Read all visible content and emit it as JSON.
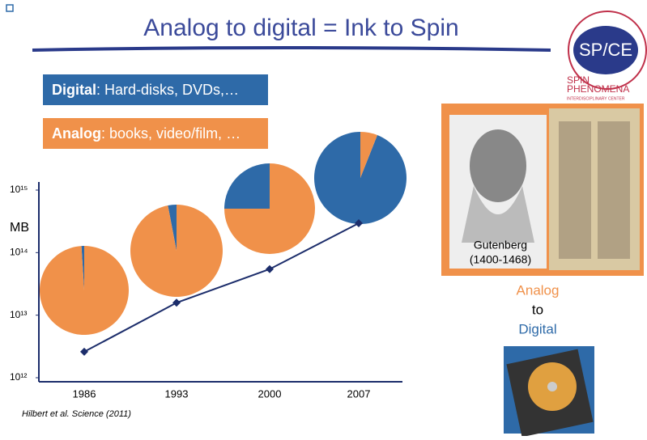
{
  "title": "Analog to digital = Ink to Spin",
  "logo": {
    "mark": "SP/CE",
    "name_line1": "SPIN",
    "name_line2": "PHENOMENA",
    "subtitle": "INTERDISCIPLINARY CENTER"
  },
  "figure": {
    "caption": [
      "Gutenberg",
      "(1400-1468)"
    ]
  },
  "transition": [
    "Analog",
    "to",
    "Digital"
  ],
  "citation": "Hilbert et al. Science (2011)",
  "chart_data": {
    "type": "line",
    "ylabel": "MB",
    "categories": [
      "1986",
      "1993",
      "2000",
      "2007"
    ],
    "series": [
      {
        "color": "#1c2d6b",
        "values": [
          2600000000000,
          15800000000000,
          54500000000000,
          295000000000000
        ]
      }
    ],
    "log_scale": true,
    "ylim": [
      1000000000000,
      1000000000000000
    ],
    "yticks": [
      {
        "value": 1000000000000,
        "label": "10¹²"
      },
      {
        "value": 10000000000000,
        "label": "10¹³"
      },
      {
        "value": 100000000000000,
        "label": "10¹⁴"
      },
      {
        "value": 1000000000000000,
        "label": "10¹⁵"
      }
    ],
    "pie_series": [
      {
        "name": "Digital",
        "description": ": Hard-disks, DVDs,…",
        "color": "#2e6aa8",
        "values": [
          1,
          3,
          25,
          94
        ]
      },
      {
        "name": "Analog",
        "description": ": books, video/film, …",
        "color": "#f0914a",
        "values": [
          99,
          97,
          75,
          6
        ]
      }
    ]
  }
}
